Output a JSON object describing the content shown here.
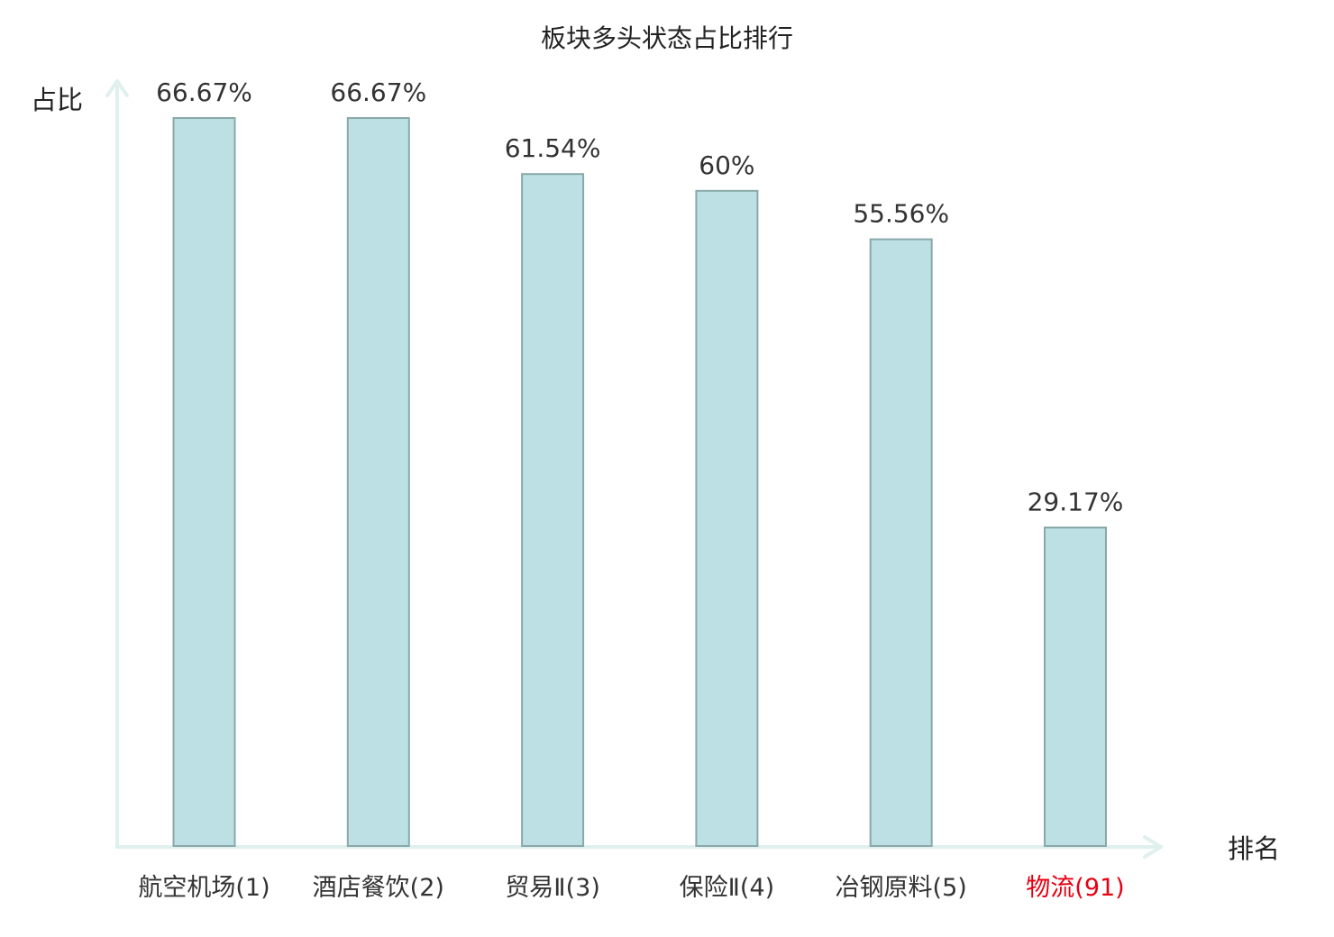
{
  "chart_data": {
    "type": "bar",
    "title": "板块多头状态占比排行",
    "ylabel": "占比",
    "xlabel": "排名",
    "categories": [
      "航空机场(1)",
      "酒店餐饮(2)",
      "贸易Ⅱ(3)",
      "保险Ⅱ(4)",
      "冶钢原料(5)",
      "物流(91)"
    ],
    "values": [
      66.67,
      66.67,
      61.54,
      60,
      55.56,
      29.17
    ],
    "value_labels": [
      "66.67%",
      "66.67%",
      "61.54%",
      "60%",
      "55.56%",
      "29.17%"
    ],
    "highlight_index": 5,
    "ylim": [
      0,
      66.67
    ],
    "grid": false,
    "colors": {
      "bar_fill": "#bce0e3",
      "bar_stroke": "#8aa8aa",
      "axis": "#dff0ee",
      "label": "#333333",
      "highlight": "#e60012"
    }
  }
}
